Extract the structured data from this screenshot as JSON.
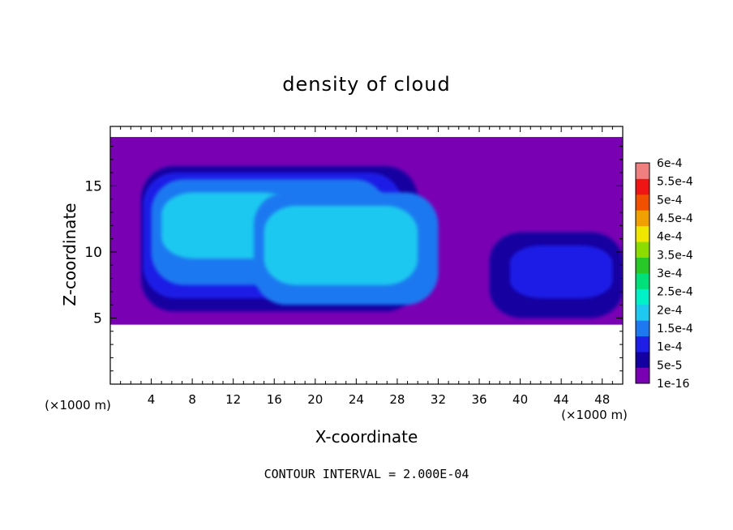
{
  "chart_data": {
    "type": "heatmap",
    "title": "density of cloud",
    "xlabel": "X-coordinate",
    "ylabel": "Z-coordinate",
    "x_unit_left": "(×1000 m)",
    "x_unit_right": "(×1000 m)",
    "xlim": [
      0,
      50
    ],
    "ylim": [
      0,
      19.5
    ],
    "x_ticks": [
      4,
      8,
      12,
      16,
      20,
      24,
      28,
      32,
      36,
      40,
      44,
      48
    ],
    "y_ticks": [
      5,
      10,
      15
    ],
    "grid": false,
    "footer": "CONTOUR INTERVAL = 2.000E-04",
    "colorbar": {
      "levels": [
        "1e-16",
        "5e-5",
        "1e-4",
        "1.5e-4",
        "2e-4",
        "2.5e-4",
        "3e-4",
        "3.5e-4",
        "4e-4",
        "4.5e-4",
        "5e-4",
        "5.5e-4",
        "6e-4"
      ],
      "colors": [
        "#7a00b4",
        "#1400a0",
        "#1e1ee6",
        "#1e78f0",
        "#1ec8f0",
        "#00f0c8",
        "#00e07a",
        "#28c828",
        "#8cdc00",
        "#f0e600",
        "#f0a000",
        "#f05000",
        "#f01414",
        "#f08080"
      ]
    },
    "cloud_cells": [
      {
        "x": [
          0,
          50
        ],
        "z": [
          4.5,
          18.7
        ],
        "level": "1e-16"
      },
      {
        "x": [
          3,
          30
        ],
        "z": [
          5.5,
          16.5
        ],
        "level": "5e-5"
      },
      {
        "x": [
          3.2,
          28.5
        ],
        "z": [
          6.5,
          16
        ],
        "level": "1e-4"
      },
      {
        "x": [
          4,
          27
        ],
        "z": [
          7.5,
          15.5
        ],
        "level": "1.5e-4"
      },
      {
        "x": [
          5,
          18
        ],
        "z": [
          9.5,
          14.5
        ],
        "level": "2e-4"
      },
      {
        "x": [
          14,
          32
        ],
        "z": [
          6,
          14.5
        ],
        "level": "1.5e-4"
      },
      {
        "x": [
          15,
          30
        ],
        "z": [
          7.5,
          13.5
        ],
        "level": "2e-4"
      },
      {
        "x": [
          37,
          50
        ],
        "z": [
          5,
          11.5
        ],
        "level": "5e-5"
      },
      {
        "x": [
          39,
          49
        ],
        "z": [
          6.5,
          10.5
        ],
        "level": "1e-4"
      }
    ]
  }
}
